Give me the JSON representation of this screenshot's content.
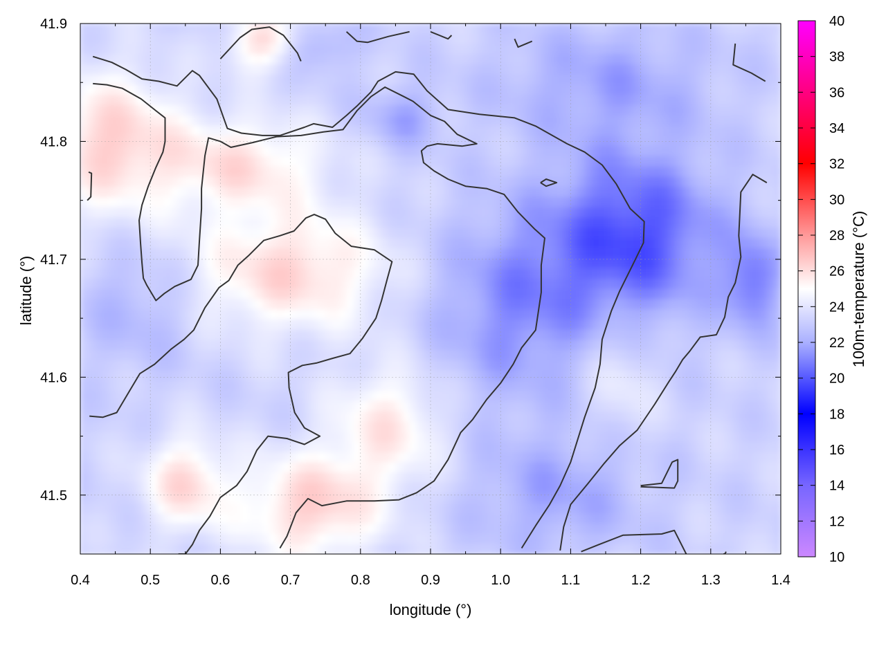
{
  "chart_data": {
    "type": "heatmap",
    "title": "",
    "xlabel": "longitude (°)",
    "ylabel": "latitude (°)",
    "xlim": [
      0.4,
      1.4
    ],
    "ylim": [
      41.45,
      41.9
    ],
    "x_ticks": [
      0.4,
      0.5,
      0.6,
      0.7,
      0.8,
      0.9,
      1.0,
      1.1,
      1.2,
      1.3,
      1.4
    ],
    "x_tick_labels": [
      "0.4",
      "0.5",
      "0.6",
      "0.7",
      "0.8",
      "0.9",
      "1.0",
      "1.1",
      "1.2",
      "1.3",
      "1.4"
    ],
    "y_ticks": [
      41.5,
      41.6,
      41.7,
      41.8,
      41.9
    ],
    "y_tick_labels": [
      "41.5",
      "41.6",
      "41.7",
      "41.8",
      "41.9"
    ],
    "grid": true,
    "colorbar": {
      "label": "100m-temperature (°C)",
      "range": [
        10,
        40
      ],
      "ticks": [
        10,
        12,
        14,
        16,
        18,
        20,
        22,
        24,
        26,
        28,
        30,
        32,
        34,
        36,
        38,
        40
      ],
      "tick_labels": [
        "10",
        "12",
        "14",
        "16",
        "18",
        "20",
        "22",
        "24",
        "26",
        "28",
        "30",
        "32",
        "34",
        "36",
        "38",
        "40"
      ],
      "color_stops": [
        {
          "value": 10,
          "color": "#cc88ff"
        },
        {
          "value": 14,
          "color": "#7766ff"
        },
        {
          "value": 18,
          "color": "#0000ff"
        },
        {
          "value": 22,
          "color": "#aab0ff"
        },
        {
          "value": 25,
          "color": "#ffffff"
        },
        {
          "value": 28,
          "color": "#ff9999"
        },
        {
          "value": 32,
          "color": "#ff0000"
        },
        {
          "value": 36,
          "color": "#ff0080"
        },
        {
          "value": 40,
          "color": "#ff00ff"
        }
      ]
    },
    "field": {
      "background_value": 23.3,
      "features": [
        {
          "lon": 0.44,
          "lat": 41.8,
          "value": 26.3,
          "sx": 0.1,
          "sy": 0.06
        },
        {
          "lon": 0.7,
          "lat": 41.69,
          "value": 26.2,
          "sx": 0.14,
          "sy": 0.05
        },
        {
          "lon": 0.63,
          "lat": 41.78,
          "value": 25.8,
          "sx": 0.12,
          "sy": 0.04
        },
        {
          "lon": 0.73,
          "lat": 41.49,
          "value": 26.4,
          "sx": 0.1,
          "sy": 0.045
        },
        {
          "lon": 0.55,
          "lat": 41.51,
          "value": 26.0,
          "sx": 0.06,
          "sy": 0.04
        },
        {
          "lon": 0.66,
          "lat": 41.885,
          "value": 26.0,
          "sx": 0.05,
          "sy": 0.025
        },
        {
          "lon": 0.84,
          "lat": 41.56,
          "value": 25.6,
          "sx": 0.08,
          "sy": 0.05
        },
        {
          "lon": 1.19,
          "lat": 41.72,
          "value": 19.8,
          "sx": 0.12,
          "sy": 0.07
        },
        {
          "lon": 1.02,
          "lat": 41.66,
          "value": 21.2,
          "sx": 0.12,
          "sy": 0.08
        },
        {
          "lon": 1.36,
          "lat": 41.68,
          "value": 20.8,
          "sx": 0.04,
          "sy": 0.04
        },
        {
          "lon": 1.15,
          "lat": 41.85,
          "value": 21.8,
          "sx": 0.15,
          "sy": 0.05
        },
        {
          "lon": 1.08,
          "lat": 41.5,
          "value": 21.8,
          "sx": 0.12,
          "sy": 0.05
        },
        {
          "lon": 0.74,
          "lat": 41.88,
          "value": 22.0,
          "sx": 0.05,
          "sy": 0.02
        },
        {
          "lon": 0.86,
          "lat": 41.82,
          "value": 21.8,
          "sx": 0.05,
          "sy": 0.025
        },
        {
          "lon": 0.48,
          "lat": 41.66,
          "value": 22.2,
          "sx": 0.08,
          "sy": 0.05
        },
        {
          "lon": 1.17,
          "lat": 41.6,
          "value": 24.5,
          "sx": 0.05,
          "sy": 0.05
        }
      ]
    },
    "contours": [
      [
        [
          0.418,
          41.872
        ],
        [
          0.445,
          41.867
        ],
        [
          0.465,
          41.861
        ],
        [
          0.488,
          41.853
        ],
        [
          0.512,
          41.851
        ],
        [
          0.538,
          41.847
        ],
        [
          0.56,
          41.86
        ],
        [
          0.57,
          41.856
        ],
        [
          0.595,
          41.836
        ],
        [
          0.61,
          41.811
        ],
        [
          0.63,
          41.807
        ],
        [
          0.66,
          41.805
        ],
        [
          0.685,
          41.805
        ],
        [
          0.72,
          41.812
        ],
        [
          0.733,
          41.815
        ],
        [
          0.76,
          41.812
        ],
        [
          0.78,
          41.822
        ],
        [
          0.795,
          41.83
        ],
        [
          0.815,
          41.842
        ],
        [
          0.825,
          41.851
        ],
        [
          0.85,
          41.859
        ],
        [
          0.876,
          41.857
        ],
        [
          0.895,
          41.843
        ],
        [
          0.925,
          41.827
        ],
        [
          0.97,
          41.823
        ],
        [
          1.02,
          41.82
        ],
        [
          1.05,
          41.813
        ],
        [
          1.095,
          41.798
        ],
        [
          1.12,
          41.791
        ],
        [
          1.145,
          41.78
        ],
        [
          1.165,
          41.764
        ],
        [
          1.185,
          41.743
        ],
        [
          1.205,
          41.732
        ],
        [
          1.204,
          41.714
        ],
        [
          1.19,
          41.697
        ],
        [
          1.17,
          41.673
        ],
        [
          1.158,
          41.656
        ],
        [
          1.145,
          41.632
        ],
        [
          1.142,
          41.611
        ],
        [
          1.135,
          41.591
        ],
        [
          1.12,
          41.566
        ],
        [
          1.1,
          41.528
        ],
        [
          1.085,
          41.508
        ],
        [
          1.07,
          41.492
        ],
        [
          1.05,
          41.474
        ],
        [
          1.03,
          41.455
        ]
      ],
      [
        [
          0.418,
          41.849
        ],
        [
          0.438,
          41.848
        ],
        [
          0.46,
          41.845
        ],
        [
          0.487,
          41.836
        ],
        [
          0.508,
          41.826
        ],
        [
          0.521,
          41.82
        ],
        [
          0.521,
          41.8
        ],
        [
          0.518,
          41.791
        ],
        [
          0.508,
          41.778
        ],
        [
          0.497,
          41.762
        ],
        [
          0.488,
          41.746
        ],
        [
          0.484,
          41.733
        ],
        [
          0.486,
          41.714
        ],
        [
          0.488,
          41.697
        ],
        [
          0.49,
          41.684
        ],
        [
          0.495,
          41.678
        ],
        [
          0.508,
          41.665
        ],
        [
          0.52,
          41.671
        ],
        [
          0.535,
          41.677
        ],
        [
          0.558,
          41.683
        ],
        [
          0.568,
          41.695
        ],
        [
          0.57,
          41.715
        ],
        [
          0.573,
          41.743
        ],
        [
          0.573,
          41.76
        ],
        [
          0.578,
          41.788
        ],
        [
          0.583,
          41.803
        ],
        [
          0.6,
          41.8
        ],
        [
          0.615,
          41.795
        ],
        [
          0.646,
          41.799
        ],
        [
          0.68,
          41.804
        ],
        [
          0.715,
          41.805
        ],
        [
          0.747,
          41.808
        ],
        [
          0.775,
          41.81
        ],
        [
          0.795,
          41.826
        ],
        [
          0.815,
          41.838
        ],
        [
          0.835,
          41.846
        ],
        [
          0.862,
          41.838
        ],
        [
          0.875,
          41.834
        ],
        [
          0.9,
          41.822
        ],
        [
          0.92,
          41.817
        ],
        [
          0.938,
          41.806
        ],
        [
          0.966,
          41.798
        ],
        [
          0.945,
          41.796
        ],
        [
          0.91,
          41.798
        ],
        [
          0.895,
          41.796
        ],
        [
          0.887,
          41.792
        ],
        [
          0.89,
          41.782
        ],
        [
          0.905,
          41.775
        ],
        [
          0.925,
          41.768
        ],
        [
          0.95,
          41.762
        ],
        [
          0.98,
          41.76
        ],
        [
          1.005,
          41.755
        ],
        [
          1.025,
          41.74
        ],
        [
          1.048,
          41.726
        ],
        [
          1.063,
          41.718
        ],
        [
          1.058,
          41.695
        ],
        [
          1.058,
          41.672
        ],
        [
          1.05,
          41.64
        ],
        [
          1.03,
          41.625
        ],
        [
          1.018,
          41.611
        ],
        [
          1.0,
          41.595
        ],
        [
          0.98,
          41.581
        ],
        [
          0.96,
          41.564
        ],
        [
          0.943,
          41.553
        ],
        [
          0.925,
          41.53
        ],
        [
          0.905,
          41.512
        ],
        [
          0.88,
          41.502
        ],
        [
          0.855,
          41.496
        ],
        [
          0.82,
          41.495
        ],
        [
          0.78,
          41.495
        ],
        [
          0.745,
          41.491
        ],
        [
          0.725,
          41.497
        ],
        [
          0.708,
          41.485
        ],
        [
          0.695,
          41.465
        ],
        [
          0.685,
          41.455
        ]
      ],
      [
        [
          0.413,
          41.567
        ],
        [
          0.432,
          41.566
        ],
        [
          0.452,
          41.57
        ],
        [
          0.47,
          41.588
        ],
        [
          0.485,
          41.603
        ],
        [
          0.506,
          41.611
        ],
        [
          0.53,
          41.624
        ],
        [
          0.548,
          41.632
        ],
        [
          0.562,
          41.64
        ],
        [
          0.578,
          41.659
        ],
        [
          0.598,
          41.676
        ],
        [
          0.612,
          41.682
        ],
        [
          0.625,
          41.695
        ],
        [
          0.64,
          41.703
        ],
        [
          0.662,
          41.716
        ],
        [
          0.685,
          41.72
        ],
        [
          0.705,
          41.724
        ],
        [
          0.722,
          41.735
        ],
        [
          0.734,
          41.738
        ],
        [
          0.75,
          41.734
        ],
        [
          0.764,
          41.722
        ],
        [
          0.787,
          41.711
        ],
        [
          0.82,
          41.708
        ],
        [
          0.845,
          41.698
        ],
        [
          0.838,
          41.683
        ],
        [
          0.83,
          41.665
        ],
        [
          0.822,
          41.65
        ],
        [
          0.803,
          41.633
        ],
        [
          0.785,
          41.62
        ],
        [
          0.76,
          41.616
        ],
        [
          0.737,
          41.612
        ],
        [
          0.717,
          41.61
        ],
        [
          0.697,
          41.604
        ],
        [
          0.698,
          41.591
        ],
        [
          0.706,
          41.57
        ],
        [
          0.72,
          41.557
        ],
        [
          0.742,
          41.55
        ],
        [
          0.72,
          41.543
        ],
        [
          0.695,
          41.548
        ],
        [
          0.668,
          41.55
        ],
        [
          0.652,
          41.538
        ],
        [
          0.638,
          41.52
        ],
        [
          0.623,
          41.508
        ],
        [
          0.6,
          41.498
        ],
        [
          0.585,
          41.482
        ],
        [
          0.57,
          41.47
        ],
        [
          0.56,
          41.458
        ],
        [
          0.55,
          41.45
        ],
        [
          0.54,
          41.45
        ]
      ],
      [
        [
          0.6,
          41.87
        ],
        [
          0.628,
          41.888
        ],
        [
          0.645,
          41.895
        ],
        [
          0.67,
          41.897
        ],
        [
          0.69,
          41.89
        ],
        [
          0.71,
          41.875
        ],
        [
          0.715,
          41.868
        ]
      ],
      [
        [
          0.78,
          41.893
        ],
        [
          0.795,
          41.885
        ],
        [
          0.81,
          41.884
        ],
        [
          0.84,
          41.889
        ],
        [
          0.87,
          41.893
        ]
      ],
      [
        [
          0.9,
          41.893
        ],
        [
          0.925,
          41.887
        ],
        [
          0.93,
          41.89
        ]
      ],
      [
        [
          1.02,
          41.887
        ],
        [
          1.025,
          41.88
        ],
        [
          1.045,
          41.885
        ]
      ],
      [
        [
          1.335,
          41.883
        ],
        [
          1.332,
          41.865
        ],
        [
          1.358,
          41.858
        ],
        [
          1.378,
          41.851
        ]
      ],
      [
        [
          0.412,
          41.774
        ],
        [
          0.416,
          41.773
        ],
        [
          0.415,
          41.753
        ],
        [
          0.41,
          41.75
        ]
      ],
      [
        [
          1.057,
          41.765
        ],
        [
          1.065,
          41.768
        ],
        [
          1.08,
          41.765
        ],
        [
          1.065,
          41.762
        ],
        [
          1.057,
          41.765
        ]
      ],
      [
        [
          1.38,
          41.765
        ],
        [
          1.36,
          41.772
        ],
        [
          1.343,
          41.757
        ],
        [
          1.34,
          41.72
        ],
        [
          1.343,
          41.702
        ],
        [
          1.335,
          41.68
        ],
        [
          1.325,
          41.668
        ],
        [
          1.32,
          41.651
        ],
        [
          1.308,
          41.636
        ],
        [
          1.285,
          41.634
        ],
        [
          1.27,
          41.622
        ],
        [
          1.26,
          41.615
        ],
        [
          1.25,
          41.605
        ],
        [
          1.24,
          41.596
        ],
        [
          1.22,
          41.577
        ],
        [
          1.195,
          41.555
        ],
        [
          1.17,
          41.542
        ],
        [
          1.148,
          41.527
        ],
        [
          1.125,
          41.51
        ],
        [
          1.1,
          41.492
        ],
        [
          1.09,
          41.473
        ],
        [
          1.085,
          41.453
        ]
      ],
      [
        [
          1.2,
          41.508
        ],
        [
          1.23,
          41.51
        ],
        [
          1.245,
          41.528
        ],
        [
          1.253,
          41.53
        ],
        [
          1.253,
          41.512
        ],
        [
          1.248,
          41.506
        ],
        [
          1.2,
          41.507
        ]
      ],
      [
        [
          1.115,
          41.452
        ],
        [
          1.14,
          41.458
        ],
        [
          1.175,
          41.466
        ],
        [
          1.23,
          41.467
        ],
        [
          1.248,
          41.47
        ],
        [
          1.265,
          41.45
        ]
      ],
      [
        [
          1.318,
          41.45
        ],
        [
          1.32,
          41.45
        ],
        [
          1.322,
          41.452
        ]
      ]
    ]
  }
}
